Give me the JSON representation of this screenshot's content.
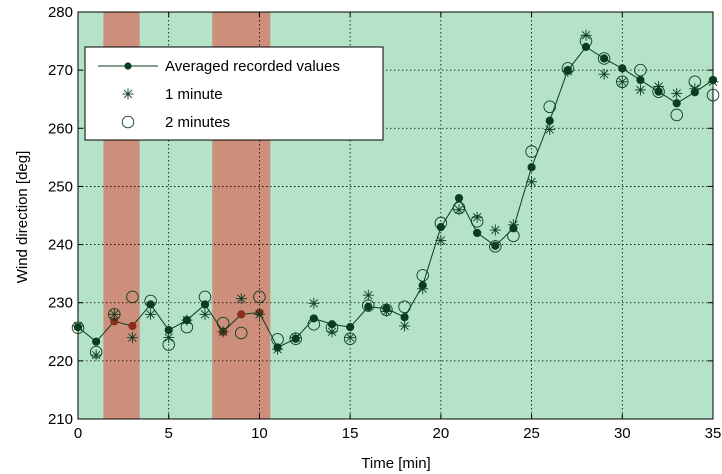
{
  "chart_data": {
    "type": "line",
    "xlabel": "Time [min]",
    "ylabel": "Wind direction [deg]",
    "xlim": [
      0,
      35
    ],
    "ylim": [
      210,
      280
    ],
    "xticks": [
      0,
      5,
      10,
      15,
      20,
      25,
      30,
      35
    ],
    "yticks": [
      210,
      220,
      230,
      240,
      250,
      260,
      270,
      280
    ],
    "grid": true,
    "legend_position": "top-left",
    "background_color": "#b5e3c8",
    "highlight_color": "#cd8f7c",
    "highlight_bands": [
      [
        1.4,
        3.4
      ],
      [
        7.4,
        10.6
      ]
    ],
    "series": [
      {
        "name": "Averaged recorded values",
        "marker": "filled-circle",
        "line": true,
        "color": "#0b3d20",
        "highlight_marker_color": "#8b2d1c",
        "x": [
          0,
          1,
          2,
          3,
          4,
          5,
          6,
          7,
          8,
          9,
          10,
          11,
          12,
          13,
          14,
          15,
          16,
          17,
          18,
          19,
          20,
          21,
          22,
          23,
          24,
          25,
          26,
          27,
          28,
          29,
          30,
          31,
          32,
          33,
          34,
          35
        ],
        "values": [
          225.8,
          223.3,
          226.8,
          226.0,
          229.7,
          225.3,
          227.0,
          229.7,
          225.0,
          228.0,
          228.3,
          222.3,
          223.8,
          227.3,
          226.3,
          225.8,
          229.3,
          229.0,
          227.5,
          233.0,
          243.0,
          248.0,
          242.0,
          239.8,
          242.8,
          253.3,
          261.3,
          270.0,
          274.0,
          272.0,
          270.3,
          268.3,
          266.3,
          264.3,
          266.2,
          268.3
        ]
      },
      {
        "name": "1 minute",
        "marker": "asterisk",
        "line": false,
        "color": "#0b3d20",
        "x": [
          0,
          1,
          2,
          3,
          4,
          5,
          6,
          7,
          8,
          9,
          10,
          11,
          12,
          13,
          14,
          15,
          16,
          17,
          18,
          19,
          20,
          21,
          22,
          23,
          24,
          25,
          26,
          27,
          28,
          29,
          30,
          31,
          32,
          33,
          34,
          35
        ],
        "values": [
          226.0,
          221.0,
          228.0,
          224.0,
          228.0,
          224.0,
          227.0,
          228.0,
          225.0,
          230.7,
          228.0,
          222.0,
          224.0,
          229.9,
          225.0,
          224.0,
          231.3,
          228.5,
          226.0,
          232.4,
          240.7,
          246.0,
          244.7,
          242.5,
          243.4,
          250.8,
          259.8,
          269.8,
          276.0,
          269.3,
          268.0,
          266.6,
          267.2,
          266.0,
          266.8,
          268.0
        ]
      },
      {
        "name": "2 minutes",
        "marker": "open-circle",
        "line": false,
        "color": "#0b3d20",
        "x": [
          0,
          1,
          2,
          3,
          4,
          5,
          6,
          7,
          8,
          9,
          10,
          11,
          12,
          13,
          14,
          15,
          16,
          17,
          18,
          19,
          20,
          21,
          22,
          23,
          24,
          25,
          26,
          27,
          28,
          29,
          30,
          31,
          32,
          33,
          34,
          35
        ],
        "values": [
          225.7,
          221.5,
          228.0,
          231.0,
          230.3,
          222.8,
          225.8,
          231.0,
          226.5,
          224.8,
          231.0,
          223.7,
          223.8,
          226.3,
          225.7,
          223.8,
          229.5,
          228.8,
          229.3,
          234.7,
          243.7,
          246.3,
          244.0,
          239.7,
          241.5,
          256.0,
          263.7,
          270.3,
          275.0,
          272.0,
          268.0,
          270.0,
          266.3,
          262.3,
          268.0,
          265.7
        ]
      }
    ]
  }
}
